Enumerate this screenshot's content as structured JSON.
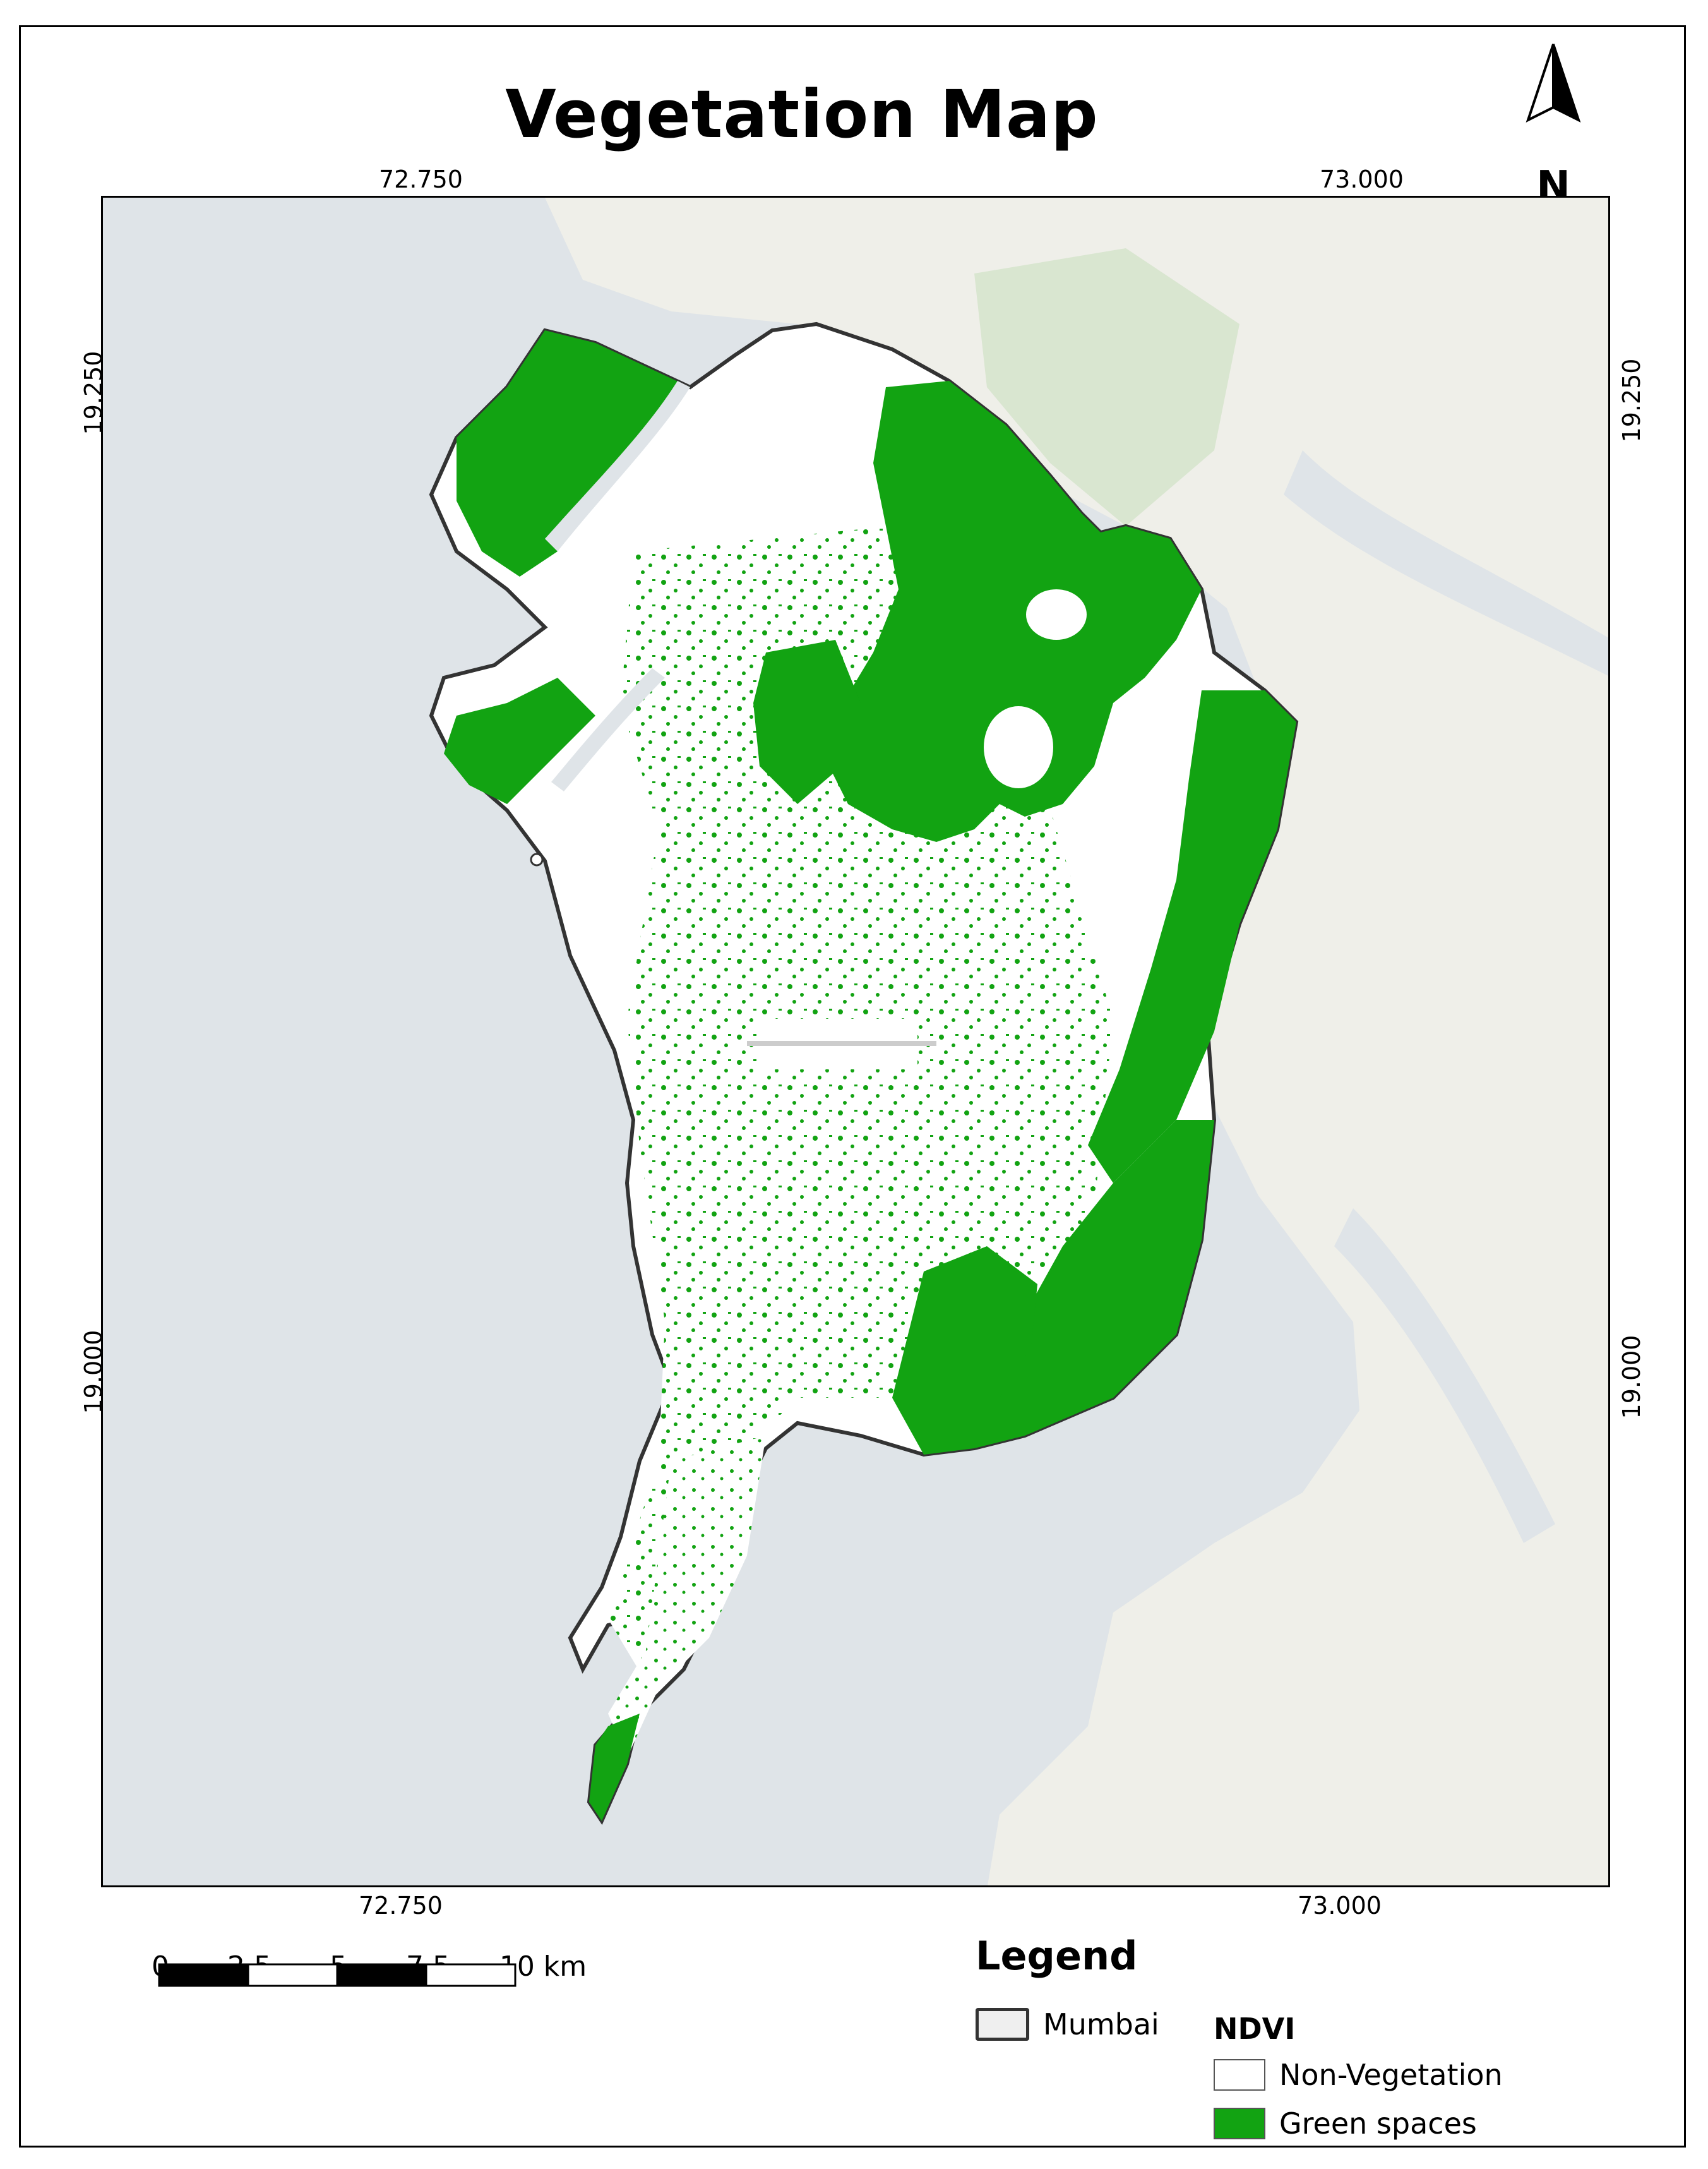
{
  "title": "Vegetation Map",
  "north_arrow": {
    "label": "N"
  },
  "coordinates": {
    "top": [
      "72.750",
      "73.000"
    ],
    "bottom": [
      "72.750",
      "73.000"
    ],
    "left": [
      "19.250",
      "19.000"
    ],
    "right": [
      "19.250",
      "19.000"
    ]
  },
  "scale_bar": {
    "labels": [
      "0",
      "2.5",
      "5",
      "7.5",
      "10 km"
    ]
  },
  "legend": {
    "title": "Legend",
    "boundary_label": "Mumbai",
    "ndvi_title": "NDVI",
    "classes": [
      {
        "label": "Non-Vegetation",
        "color": "#ffffff"
      },
      {
        "label": "Green spaces",
        "color": "#12a312"
      }
    ]
  },
  "colors": {
    "water": "#dfe4e8",
    "land": "#efefe9",
    "vegetation": "#12a312",
    "urban": "#ffffff"
  }
}
